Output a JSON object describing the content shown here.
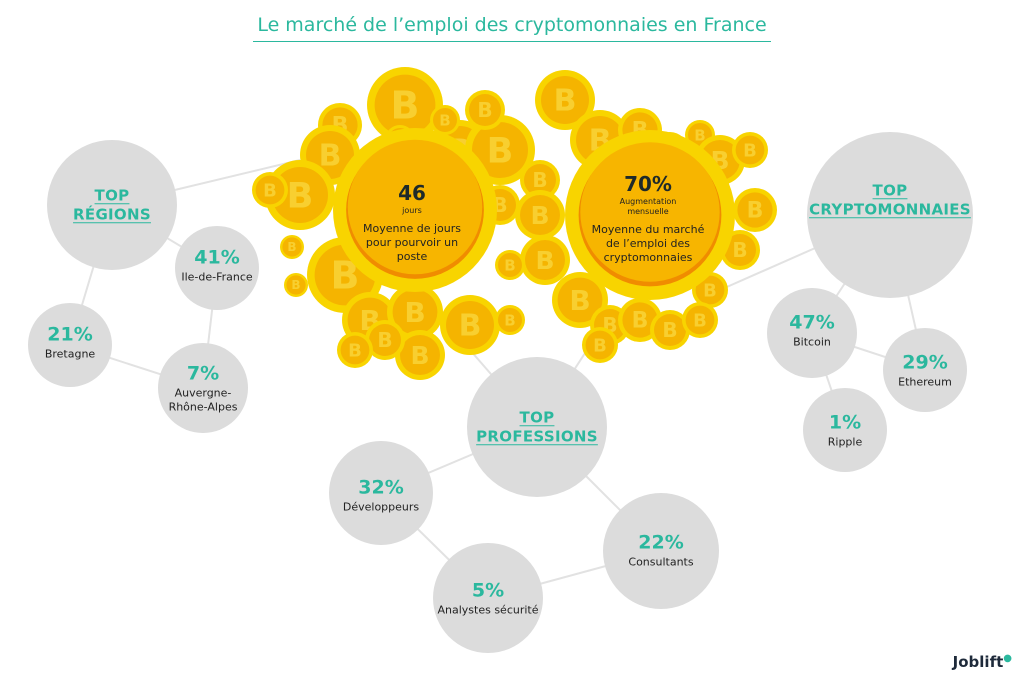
{
  "title": "Le marché de l’emploi des cryptomonnaies en France",
  "colors": {
    "accent": "#2bb89e",
    "circle": "#dcdcdc",
    "coin": "#f5b800"
  },
  "regions": {
    "heading": "TOP\nRÉGIONS",
    "items": [
      {
        "pct": "41%",
        "label": "Ile-de-France"
      },
      {
        "pct": "21%",
        "label": "Bretagne"
      },
      {
        "pct": "7%",
        "label": "Auvergne-\nRhône-Alpes"
      }
    ]
  },
  "cryptos": {
    "heading": "TOP\nCRYPTOMONNAIES",
    "items": [
      {
        "pct": "47%",
        "label": "Bitcoin"
      },
      {
        "pct": "29%",
        "label": "Ethereum"
      },
      {
        "pct": "1%",
        "label": "Ripple"
      }
    ]
  },
  "professions": {
    "heading": "TOP\nPROFESSIONS",
    "items": [
      {
        "pct": "32%",
        "label": "Développeurs"
      },
      {
        "pct": "22%",
        "label": "Consultants"
      },
      {
        "pct": "5%",
        "label": "Analystes sécurité"
      }
    ]
  },
  "days": {
    "value": "46",
    "unit": "jours",
    "desc": "Moyenne de jours pour pourvoir un poste"
  },
  "growth": {
    "value": "70%",
    "unit": "Augmentation mensuelle",
    "desc": "Moyenne du marché de l’emploi des cryptomonnaies"
  },
  "logo": "Joblift"
}
